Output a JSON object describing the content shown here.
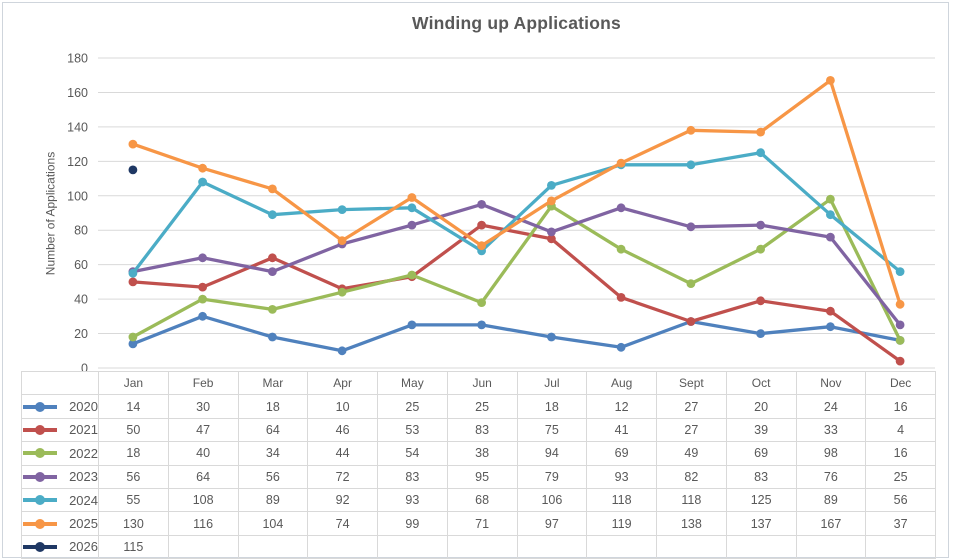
{
  "window": {
    "background": "#FFFFFF",
    "frame_border_color": "#CFD5DC"
  },
  "chart_data": {
    "type": "line",
    "title": "Winding up Applications",
    "title_color": "#595959",
    "xlabel": "",
    "ylabel": "Number of Applications",
    "categories": [
      "Jan",
      "Feb",
      "Mar",
      "Apr",
      "May",
      "Jun",
      "Jul",
      "Aug",
      "Sept",
      "Oct",
      "Nov",
      "Dec"
    ],
    "series": [
      {
        "name": "2020",
        "color": "#4F81BD",
        "values": [
          14,
          30,
          18,
          10,
          25,
          25,
          18,
          12,
          27,
          20,
          24,
          16
        ]
      },
      {
        "name": "2021",
        "color": "#C0504D",
        "values": [
          50,
          47,
          64,
          46,
          53,
          83,
          75,
          41,
          27,
          39,
          33,
          4
        ]
      },
      {
        "name": "2022",
        "color": "#9BBB59",
        "values": [
          18,
          40,
          34,
          44,
          54,
          38,
          94,
          69,
          49,
          69,
          98,
          16
        ]
      },
      {
        "name": "2023",
        "color": "#8064A2",
        "values": [
          56,
          64,
          56,
          72,
          83,
          95,
          79,
          93,
          82,
          83,
          76,
          25
        ]
      },
      {
        "name": "2024",
        "color": "#4BACC6",
        "values": [
          55,
          108,
          89,
          92,
          93,
          68,
          106,
          118,
          118,
          125,
          89,
          56
        ]
      },
      {
        "name": "2025",
        "color": "#F79646",
        "values": [
          130,
          116,
          104,
          74,
          99,
          71,
          97,
          119,
          138,
          137,
          167,
          37
        ]
      },
      {
        "name": "2026",
        "color": "#1F3864",
        "values": [
          115,
          null,
          null,
          null,
          null,
          null,
          null,
          null,
          null,
          null,
          null,
          null
        ]
      }
    ],
    "ylim": [
      0,
      180
    ],
    "ytick_step": 20,
    "yticks": [
      0,
      20,
      40,
      60,
      80,
      100,
      120,
      140,
      160,
      180
    ],
    "grid": "horizontal-only",
    "gridline_color": "#D9D9D9",
    "axis_text_color": "#595959",
    "marker": "circle",
    "legend_position": "data-table-left-column"
  },
  "table": {
    "border_color": "#D9D9D9",
    "text_color": "#595959",
    "corner_cell": ""
  }
}
